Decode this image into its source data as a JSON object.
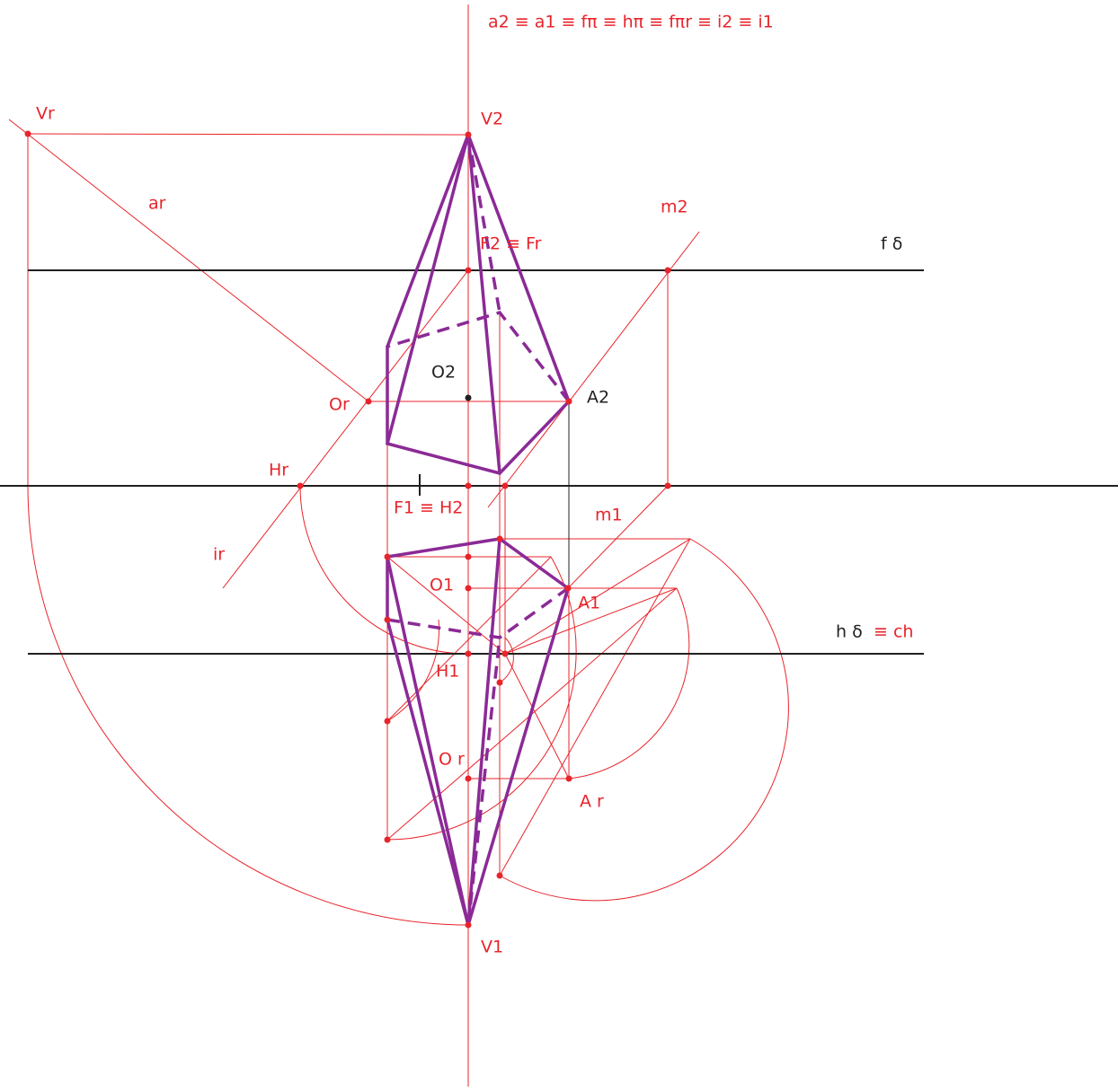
{
  "labels": [
    "a2 ≡ a1 ≡ fπ ≡ hπ ≡ fπr ≡ i2 ≡ i1",
    "Vr",
    "V2",
    "ar",
    "m2",
    "F2 ≡ Fr",
    "f δ",
    "O2",
    "Or",
    "A2",
    "Hr",
    "F1 ≡ H2",
    "m1",
    "ir",
    "O1",
    "A1",
    "h δ",
    "≡ ch",
    "H1",
    "O r",
    "A r",
    "V1"
  ]
}
